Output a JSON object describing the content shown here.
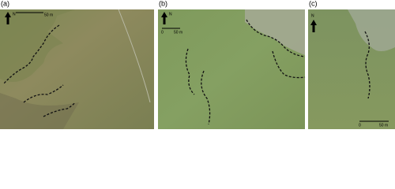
{
  "panels": [
    {
      "label": "(a)",
      "north": "N",
      "scale": "50 m"
    },
    {
      "label": "(b)",
      "north": "N",
      "scale_start": "0",
      "scale": "50 m"
    },
    {
      "label": "(c)",
      "north": "N",
      "scale_start": "0",
      "scale": "50 m"
    }
  ]
}
